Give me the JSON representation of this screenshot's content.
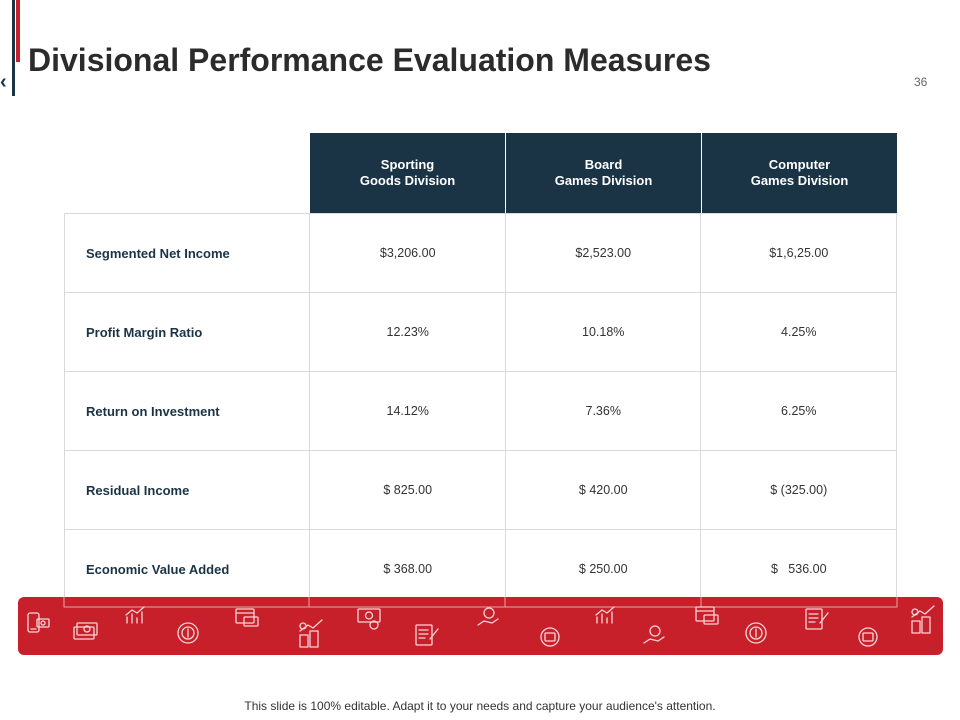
{
  "header": {
    "title": "Divisional Performance Evaluation Measures",
    "page_number": "36",
    "back_glyph": "‹"
  },
  "table": {
    "columns": [
      {
        "line1": "Sporting",
        "line2": "Goods Division"
      },
      {
        "line1": "Board",
        "line2": "Games Division"
      },
      {
        "line1": "Computer",
        "line2": "Games Division"
      }
    ],
    "rows": [
      {
        "label": "Segmented  Net Income",
        "values": [
          "$3,206.00",
          "$2,523.00",
          "$1,6,25.00"
        ]
      },
      {
        "label": "Profit Margin  Ratio",
        "values": [
          "12.23%",
          "10.18%",
          "4.25%"
        ]
      },
      {
        "label": "Return on Investment",
        "values": [
          "14.12%",
          "7.36%",
          "6.25%"
        ]
      },
      {
        "label": "Residual  Income",
        "values": [
          "$ 825.00",
          "$ 420.00",
          "$ (325.00)"
        ]
      },
      {
        "label": "Economic  Value  Added",
        "values": [
          "$ 368.00",
          "$ 250.00",
          "$   536.00"
        ]
      }
    ]
  },
  "icon_band": {
    "color": "#c8202a",
    "icons": [
      "phone-money-icon",
      "banknote-icon",
      "growth-chart-icon",
      "coin-icon",
      "atm-card-icon",
      "rising-coins-icon",
      "cash-icon",
      "invoice-icon",
      "money-hand-icon",
      "coin-stack-icon",
      "growth-chart-icon",
      "money-hand-icon",
      "atm-card-icon",
      "coin-icon",
      "invoice-icon",
      "coin-stack-icon",
      "rising-coins-icon"
    ]
  },
  "footer": {
    "note": "This slide is 100% editable. Adapt it to your needs and capture your audience's attention."
  },
  "colors": {
    "accent_red": "#c8202a",
    "navy": "#1b3445"
  }
}
